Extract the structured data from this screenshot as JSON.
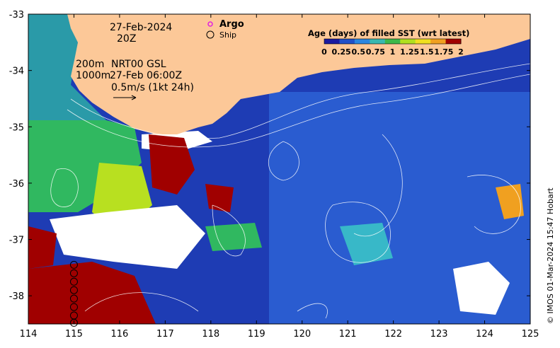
{
  "map": {
    "date": "27-Feb-2024",
    "time": "20Z",
    "depth_labels": [
      "200m",
      "1000m"
    ],
    "product": "NRT00 GSL",
    "product_time": "27-Feb 06:00Z",
    "scale_vector": "0.5m/s (1kt 24h)",
    "legend": {
      "argo": "Argo",
      "ship": "Ship"
    },
    "colorbar": {
      "title": "Age (days) of filled SST (wrt latest)",
      "ticks": [
        "0",
        "0.25",
        "0.5",
        "0.75",
        "1",
        "1.25",
        "1.5",
        "1.75",
        "2"
      ],
      "colors": [
        "#1a1aa0",
        "#2050c8",
        "#2a86e0",
        "#38b8b0",
        "#3cb84a",
        "#b0e020",
        "#f0e020",
        "#f0a020",
        "#a00000"
      ]
    },
    "credit": "© IMOS 01-Mar-2024 15:47 Hobart",
    "x_ticks": [
      "114",
      "115",
      "116",
      "117",
      "118",
      "119",
      "120",
      "121",
      "122",
      "123",
      "124",
      "125"
    ],
    "y_ticks": [
      "-33",
      "-34",
      "-35",
      "-36",
      "-37",
      "-38"
    ],
    "lon_range": [
      114,
      125
    ],
    "lat_range": [
      -38.5,
      -33
    ],
    "ship_track_lon": 115,
    "ship_track_lats": [
      -37.45,
      -37.6,
      -37.75,
      -37.9,
      -38.05,
      -38.2,
      -38.35,
      -38.48
    ],
    "colors": {
      "land": "#fcc898",
      "ocean": "#1e3cb4",
      "old_sst": "#a00000",
      "no_data": "#ffffff"
    }
  }
}
